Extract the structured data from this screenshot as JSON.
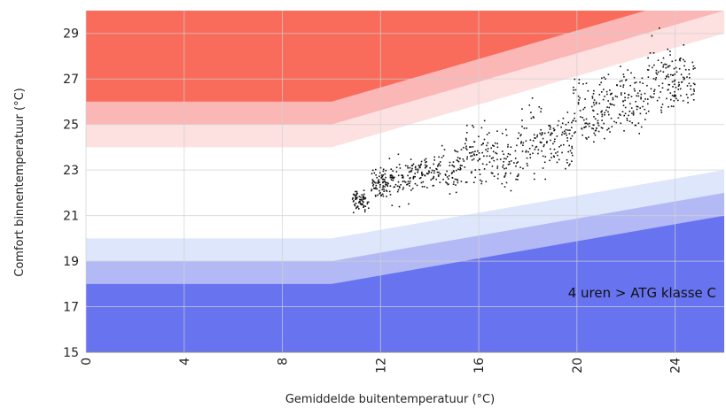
{
  "chart_data": {
    "type": "scatter",
    "title": "",
    "xlabel": "Gemiddelde buitentemperatuur (°C)",
    "ylabel": "Comfort binnentemperatuur (°C)",
    "xlim": [
      0,
      26
    ],
    "ylim": [
      15,
      30
    ],
    "x_ticks": [
      "0",
      "4",
      "8",
      "12",
      "16",
      "20",
      "24"
    ],
    "y_ticks": [
      "15",
      "17",
      "19",
      "21",
      "23",
      "25",
      "27",
      "29"
    ],
    "grid": true,
    "annotation": "4 uren > ATG klasse C",
    "comfort_bands": {
      "upper": [
        {
          "color": "#fde0e0",
          "from": [
            [
              0,
              24
            ],
            [
              10,
              24
            ],
            [
              26,
              29
            ]
          ],
          "to": [
            [
              0,
              25
            ],
            [
              10,
              25
            ],
            [
              26,
              30
            ]
          ]
        },
        {
          "color": "#fbb6b6",
          "from": [
            [
              0,
              25
            ],
            [
              10,
              25
            ],
            [
              26,
              30
            ]
          ],
          "to": [
            [
              0,
              26
            ],
            [
              10,
              26
            ],
            [
              26,
              31
            ]
          ]
        },
        {
          "color": "#f96b5a",
          "from": [
            [
              0,
              26
            ],
            [
              10,
              26
            ],
            [
              26,
              31
            ]
          ],
          "to": [
            [
              0,
              30
            ],
            [
              26,
              30
            ]
          ]
        }
      ],
      "lower": [
        {
          "color": "#dde6fb",
          "from": [
            [
              0,
              19
            ],
            [
              10,
              19
            ],
            [
              26,
              22
            ]
          ],
          "to": [
            [
              0,
              20
            ],
            [
              10,
              20
            ],
            [
              26,
              23
            ]
          ]
        },
        {
          "color": "#b3b9f5",
          "from": [
            [
              0,
              18
            ],
            [
              10,
              18
            ],
            [
              26,
              21
            ]
          ],
          "to": [
            [
              0,
              19
            ],
            [
              10,
              19
            ],
            [
              26,
              22
            ]
          ]
        },
        {
          "color": "#6873f0",
          "from": [
            [
              0,
              15
            ],
            [
              26,
              15
            ]
          ],
          "to": [
            [
              0,
              18
            ],
            [
              10,
              18
            ],
            [
              26,
              21
            ]
          ]
        }
      ]
    },
    "series": [
      {
        "x_range": [
          10.8,
          24.8
        ],
        "clusters": [
          {
            "x": [
              10.8,
              11.5
            ],
            "y": [
              21.0,
              22.3
            ]
          },
          {
            "x": [
              11.6,
              12.2
            ],
            "y": [
              21.6,
              23.4
            ]
          },
          {
            "x": [
              12.2,
              13.2
            ],
            "y": [
              21.2,
              24.0
            ]
          },
          {
            "x": [
              13.2,
              14.2
            ],
            "y": [
              21.8,
              24.0
            ]
          },
          {
            "x": [
              14.2,
              15.3
            ],
            "y": [
              21.8,
              24.4
            ]
          },
          {
            "x": [
              15.3,
              16.4
            ],
            "y": [
              22.0,
              25.6
            ]
          },
          {
            "x": [
              16.4,
              17.6
            ],
            "y": [
              21.6,
              25.2
            ]
          },
          {
            "x": [
              17.6,
              18.8
            ],
            "y": [
              22.0,
              26.5
            ]
          },
          {
            "x": [
              18.8,
              19.8
            ],
            "y": [
              22.4,
              26.0
            ]
          },
          {
            "x": [
              19.8,
              20.8
            ],
            "y": [
              23.0,
              27.6
            ]
          },
          {
            "x": [
              20.8,
              21.8
            ],
            "y": [
              23.4,
              28.4
            ]
          },
          {
            "x": [
              21.8,
              22.8
            ],
            "y": [
              24.0,
              28.0
            ]
          },
          {
            "x": [
              22.8,
              23.8
            ],
            "y": [
              24.4,
              29.6
            ]
          },
          {
            "x": [
              23.8,
              24.8
            ],
            "y": [
              25.2,
              28.8
            ]
          }
        ]
      }
    ]
  }
}
